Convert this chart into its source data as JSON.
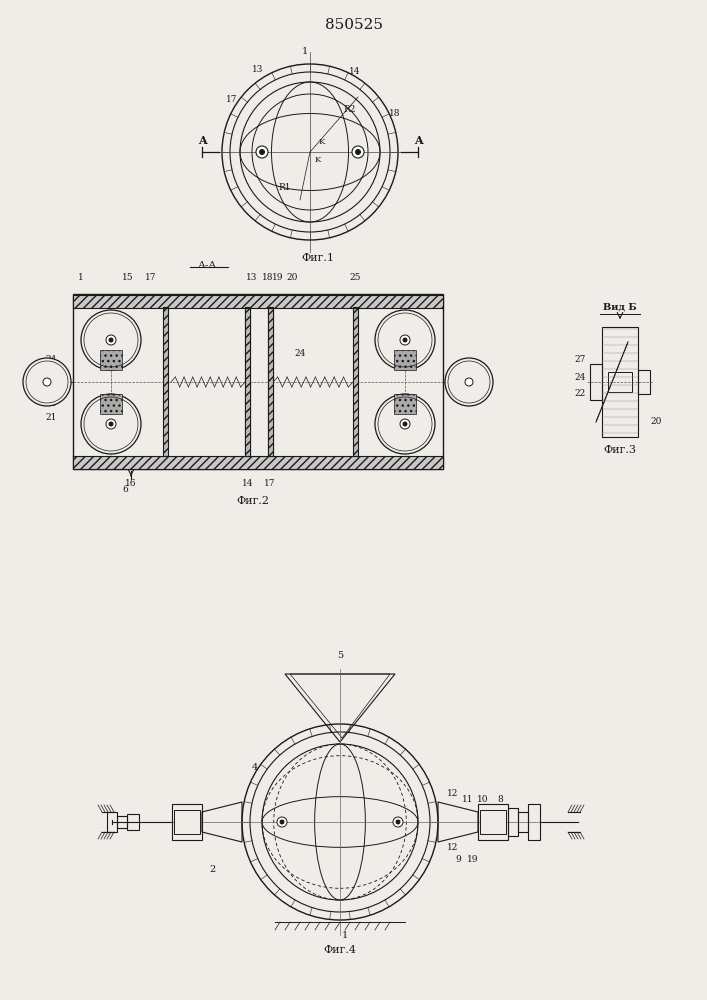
{
  "patent_number": "850525",
  "bg_color": "#f0ede8",
  "line_color": "#1a1a1a",
  "fig1_caption": "Фиг.1",
  "fig2_caption": "Фиг.2",
  "fig3_caption": "Фиг.3",
  "fig4_caption": "Фиг.4",
  "aa_label": "А-А",
  "vid_label": "Вид Б"
}
